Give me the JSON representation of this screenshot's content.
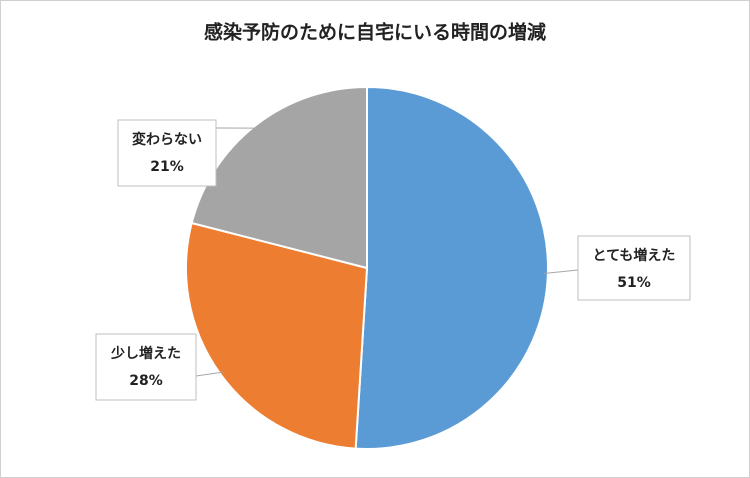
{
  "chart_data": {
    "type": "pie",
    "title": "感染予防のために自宅にいる時間の増減",
    "categories": [
      "とても増えた",
      "少し増えた",
      "変わらない"
    ],
    "values": [
      51,
      28,
      21
    ],
    "value_labels": [
      "51%",
      "28%",
      "21%"
    ],
    "colors": [
      "#5b9bd5",
      "#ed7d31",
      "#a5a5a5"
    ]
  }
}
